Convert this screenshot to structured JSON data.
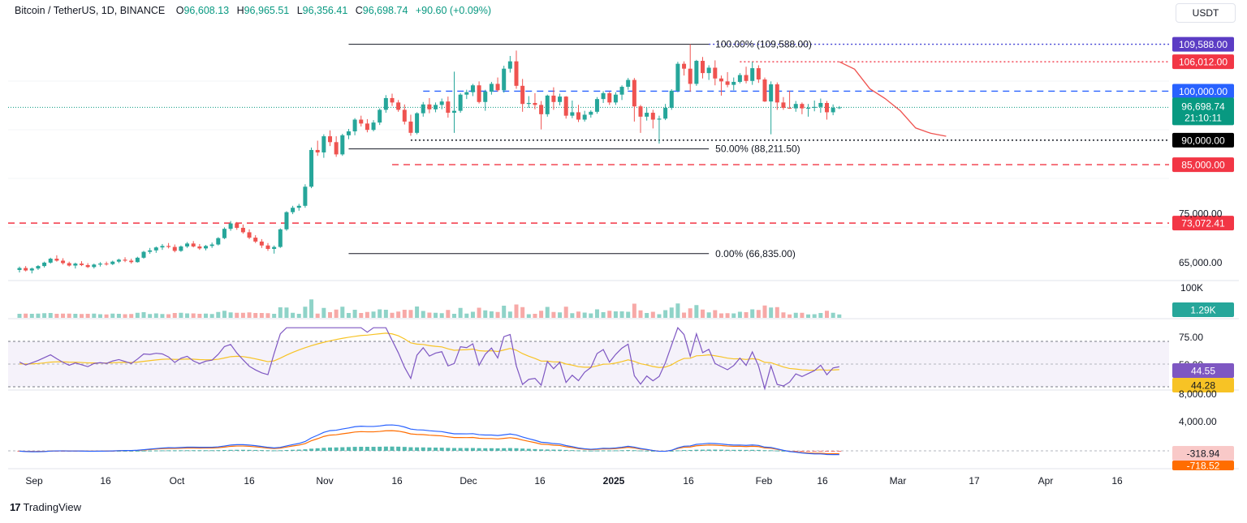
{
  "header": {
    "symbol": "Bitcoin / TetherUS, 1D, BINANCE",
    "o_label": "O",
    "o_value": "96,608.13",
    "h_label": "H",
    "h_value": "96,965.51",
    "l_label": "L",
    "l_value": "96,356.41",
    "c_label": "C",
    "c_value": "96,698.74",
    "change": "+90.60 (+0.09%)"
  },
  "currency_button": "USDT",
  "branding": {
    "name": "TradingView",
    "icon": "tradingview-logo-icon"
  },
  "colors": {
    "up": "#26a69a",
    "down": "#ef5350",
    "price_line": "#089981",
    "fib": "#131722",
    "blue_level": "#2962ff",
    "red_level": "#f23645",
    "rsi": "#7e57c2",
    "rsi_ma": "#f7c325",
    "macd": "#2962ff",
    "signal": "#ff6d00"
  },
  "chart_data": {
    "type": "candlestick",
    "title": "Bitcoin / TetherUS, 1D, BINANCE",
    "x_ticks": [
      "Sep",
      "16",
      "Oct",
      "16",
      "Nov",
      "16",
      "Dec",
      "16",
      "2025",
      "16",
      "Feb",
      "16",
      "Mar",
      "17",
      "Apr",
      "16"
    ],
    "y_ticks": [
      "65,000.00",
      "75,000.00"
    ],
    "y_range": [
      62000,
      112000
    ],
    "candles_approx": [
      [
        63500,
        64200,
        63000,
        63900
      ],
      [
        63900,
        64300,
        63200,
        63400
      ],
      [
        63400,
        64000,
        62800,
        63800
      ],
      [
        63800,
        64500,
        63500,
        64300
      ],
      [
        64300,
        65200,
        64000,
        65000
      ],
      [
        65000,
        66000,
        64800,
        65800
      ],
      [
        65800,
        66500,
        65200,
        65400
      ],
      [
        65400,
        65900,
        64600,
        64900
      ],
      [
        64900,
        65200,
        64200,
        64400
      ],
      [
        64400,
        65000,
        63800,
        64800
      ],
      [
        64800,
        65300,
        64300,
        64500
      ],
      [
        64500,
        64900,
        63900,
        64100
      ],
      [
        64100,
        64800,
        63800,
        64600
      ],
      [
        64600,
        65100,
        64200,
        64800
      ],
      [
        64800,
        65200,
        64400,
        64700
      ],
      [
        64700,
        65400,
        64500,
        65200
      ],
      [
        65200,
        65800,
        64900,
        65600
      ],
      [
        65600,
        66100,
        65100,
        65400
      ],
      [
        65400,
        65800,
        64800,
        65100
      ],
      [
        65100,
        66200,
        65000,
        66000
      ],
      [
        66000,
        67400,
        65800,
        67200
      ],
      [
        67200,
        68000,
        66800,
        67500
      ],
      [
        67500,
        68300,
        67000,
        68100
      ],
      [
        68100,
        68800,
        67600,
        68400
      ],
      [
        68400,
        69000,
        67900,
        68200
      ],
      [
        68200,
        68700,
        67100,
        67400
      ],
      [
        67400,
        68500,
        67200,
        68300
      ],
      [
        68300,
        69200,
        68000,
        68900
      ],
      [
        68900,
        69400,
        68100,
        68300
      ],
      [
        68300,
        68800,
        67600,
        67900
      ],
      [
        67900,
        68600,
        67500,
        68400
      ],
      [
        68400,
        69100,
        68000,
        68700
      ],
      [
        68700,
        70200,
        68500,
        70000
      ],
      [
        70000,
        72200,
        69800,
        71900
      ],
      [
        71900,
        73500,
        71500,
        73000
      ],
      [
        73000,
        73300,
        71700,
        72100
      ],
      [
        72100,
        72800,
        70900,
        71200
      ],
      [
        71200,
        71800,
        69800,
        70100
      ],
      [
        70100,
        70600,
        69000,
        69300
      ],
      [
        69300,
        69800,
        68000,
        68500
      ],
      [
        68500,
        69000,
        67400,
        67800
      ],
      [
        67800,
        68500,
        66835,
        68200
      ],
      [
        68200,
        72000,
        68000,
        71800
      ],
      [
        71800,
        75500,
        71500,
        75300
      ],
      [
        75300,
        76600,
        74900,
        76200
      ],
      [
        76200,
        77000,
        75600,
        76600
      ],
      [
        76600,
        81000,
        76200,
        80500
      ],
      [
        80500,
        88500,
        80200,
        88000
      ],
      [
        88000,
        89900,
        86800,
        87500
      ],
      [
        87500,
        91200,
        86400,
        90800
      ],
      [
        90800,
        92000,
        88800,
        89600
      ],
      [
        89600,
        90800,
        86600,
        87100
      ],
      [
        87100,
        91300,
        86800,
        91000
      ],
      [
        91000,
        92300,
        90200,
        91800
      ],
      [
        91800,
        94500,
        91000,
        94200
      ],
      [
        94200,
        95000,
        92800,
        93400
      ],
      [
        93400,
        94300,
        91600,
        92100
      ],
      [
        92100,
        94100,
        91800,
        93600
      ],
      [
        93600,
        96500,
        93100,
        96200
      ],
      [
        96200,
        99200,
        95600,
        98600
      ],
      [
        98600,
        99500,
        97000,
        97700
      ],
      [
        97700,
        98200,
        95800,
        96200
      ],
      [
        96200,
        97300,
        93200,
        93800
      ],
      [
        93800,
        95200,
        90900,
        91500
      ],
      [
        91500,
        95700,
        91200,
        95500
      ],
      [
        95500,
        97800,
        94800,
        97300
      ],
      [
        97300,
        98600,
        95500,
        96300
      ],
      [
        96300,
        97700,
        95700,
        97200
      ],
      [
        97200,
        98500,
        96300,
        97900
      ],
      [
        97900,
        98900,
        94600,
        95600
      ],
      [
        95600,
        104000,
        91500,
        96000
      ],
      [
        96000,
        99600,
        95600,
        99300
      ],
      [
        99300,
        100300,
        98400,
        99800
      ],
      [
        99800,
        101500,
        99000,
        101200
      ],
      [
        101200,
        102000,
        97500,
        97800
      ],
      [
        97800,
        100300,
        96000,
        99900
      ],
      [
        99900,
        101900,
        99300,
        101500
      ],
      [
        101500,
        102800,
        99900,
        100200
      ],
      [
        100200,
        105200,
        99700,
        104600
      ],
      [
        104600,
        107200,
        103800,
        106100
      ],
      [
        106100,
        108300,
        100500,
        101100
      ],
      [
        101100,
        102500,
        95800,
        97400
      ],
      [
        97400,
        99000,
        96600,
        97600
      ],
      [
        97600,
        99600,
        96300,
        97200
      ],
      [
        97200,
        98000,
        92200,
        95300
      ],
      [
        95300,
        99300,
        94800,
        99100
      ],
      [
        99100,
        100800,
        96200,
        97800
      ],
      [
        97800,
        99500,
        97100,
        98900
      ],
      [
        98900,
        99000,
        94400,
        95000
      ],
      [
        95000,
        98100,
        94500,
        95700
      ],
      [
        95700,
        97200,
        93700,
        94200
      ],
      [
        94200,
        96000,
        93800,
        95200
      ],
      [
        95200,
        96100,
        94600,
        95800
      ],
      [
        95800,
        98800,
        95400,
        98400
      ],
      [
        98400,
        100000,
        97600,
        99600
      ],
      [
        99600,
        99900,
        97200,
        97700
      ],
      [
        97700,
        99800,
        97200,
        99300
      ],
      [
        99300,
        101200,
        98200,
        100900
      ],
      [
        100900,
        102700,
        100300,
        102300
      ],
      [
        102300,
        102700,
        93800,
        96900
      ],
      [
        96900,
        97200,
        91500,
        94800
      ],
      [
        94800,
        96700,
        94000,
        95600
      ],
      [
        95600,
        96200,
        92400,
        94200
      ],
      [
        94200,
        95000,
        89300,
        94400
      ],
      [
        94400,
        97400,
        94100,
        96600
      ],
      [
        96600,
        100400,
        96200,
        100100
      ],
      [
        100100,
        106000,
        99800,
        105600
      ],
      [
        105600,
        106100,
        103200,
        104600
      ],
      [
        104600,
        109588,
        99900,
        101500
      ],
      [
        101500,
        106400,
        101100,
        106200
      ],
      [
        106200,
        107000,
        102600,
        103700
      ],
      [
        103700,
        105300,
        102300,
        104800
      ],
      [
        104800,
        106300,
        101200,
        102600
      ],
      [
        102600,
        103200,
        99100,
        102000
      ],
      [
        102000,
        103900,
        100800,
        101300
      ],
      [
        101300,
        102800,
        100200,
        101900
      ],
      [
        101900,
        103700,
        101600,
        103300
      ],
      [
        103300,
        105000,
        101600,
        102100
      ],
      [
        102100,
        106012,
        101300,
        104700
      ],
      [
        104700,
        105300,
        101700,
        102400
      ],
      [
        102400,
        102800,
        97800,
        97900
      ],
      [
        97900,
        102000,
        91200,
        101400
      ],
      [
        101400,
        101800,
        96200,
        97700
      ],
      [
        97700,
        98800,
        96200,
        96600
      ],
      [
        96600,
        100100,
        96400,
        96500
      ],
      [
        96500,
        98000,
        95800,
        97400
      ],
      [
        97400,
        97700,
        95300,
        96500
      ],
      [
        96500,
        97400,
        94800,
        96600
      ],
      [
        96600,
        98100,
        95900,
        96800
      ],
      [
        96800,
        98500,
        95600,
        97600
      ],
      [
        97600,
        98000,
        94200,
        95700
      ],
      [
        95700,
        97300,
        95100,
        96608
      ],
      [
        96608.13,
        96965.51,
        96356.41,
        96698.74
      ]
    ],
    "projection_path": [
      [
        106012,
        0
      ],
      [
        104500,
        4
      ],
      [
        100500,
        8
      ],
      [
        98500,
        12
      ],
      [
        96000,
        16
      ],
      [
        92500,
        20
      ],
      [
        91400,
        24
      ],
      [
        90800,
        28
      ]
    ],
    "fibonacci": [
      {
        "label": "100.00% (109,588.00)",
        "price": 109588
      },
      {
        "label": "50.00% (88,211.50)",
        "price": 88211.5
      },
      {
        "label": "0.00% (66,835.00)",
        "price": 66835
      }
    ],
    "levels": [
      {
        "price": 109588,
        "label": "109,588.00",
        "style": "dotted",
        "color": "#5b3cc4",
        "line_color": "#3f3fd4"
      },
      {
        "price": 106012,
        "label": "106,012.00",
        "style": "dotted",
        "color": "#f23645",
        "line_color": "#f23645"
      },
      {
        "price": 100000,
        "label": "100,000.00",
        "style": "dashed",
        "color": "#2962ff",
        "line_color": "#2962ff"
      },
      {
        "price": 90000,
        "label": "90,000.00",
        "style": "dotted",
        "color": "#000000",
        "line_color": "#131722"
      },
      {
        "price": 85000,
        "label": "85,000.00",
        "style": "dashed",
        "color": "#f23645",
        "line_color": "#f23645"
      },
      {
        "price": 73072.41,
        "label": "73,072.41",
        "style": "dashed",
        "color": "#f23645",
        "line_color": "#f23645"
      }
    ],
    "current_price": {
      "price": 96698.74,
      "label": "96,698.74",
      "countdown": "21:10:11"
    },
    "volume": {
      "axis_label": "100K",
      "current_label": "1.29K"
    },
    "rsi": {
      "ticks": [
        "75.00",
        "50.00"
      ],
      "rsi_label": "44.55",
      "ma_label": "44.28",
      "upper": 70,
      "lower": 30
    },
    "macd": {
      "ticks": [
        "8,000.00",
        "4,000.00"
      ],
      "histogram_label": "-318.94",
      "signal_label": "-718.52"
    }
  }
}
